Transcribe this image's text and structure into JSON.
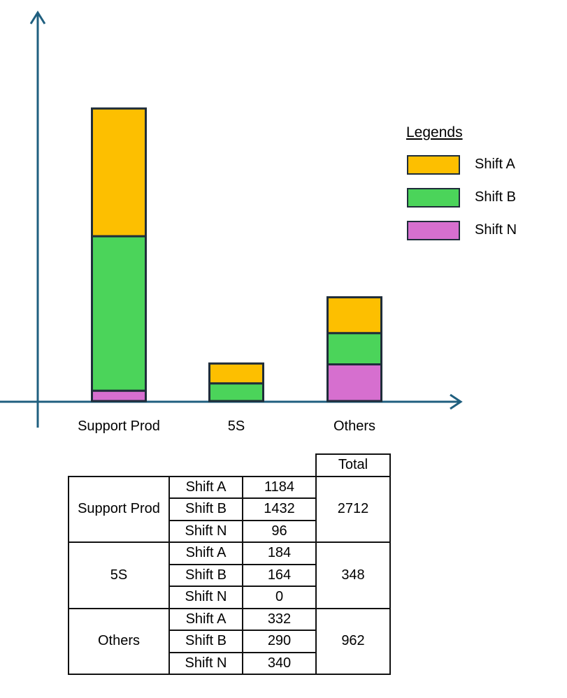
{
  "chart_data": {
    "type": "bar",
    "stacked": true,
    "categories": [
      "Support Prod",
      "5S",
      "Others"
    ],
    "series": [
      {
        "name": "Shift N",
        "color": "#d66fcf",
        "values": [
          96,
          0,
          340
        ]
      },
      {
        "name": "Shift B",
        "color": "#4bd45a",
        "values": [
          1432,
          164,
          290
        ]
      },
      {
        "name": "Shift A",
        "color": "#fdbf00",
        "values": [
          1184,
          184,
          332
        ]
      }
    ],
    "totals": [
      2712,
      348,
      962
    ],
    "grid": false,
    "axis_ticks_shown": false,
    "legend_placement": "right"
  },
  "legend": {
    "title": "Legends",
    "items": [
      {
        "label": "Shift A",
        "color": "#fdbf00"
      },
      {
        "label": "Shift B",
        "color": "#4bd45a"
      },
      {
        "label": "Shift N",
        "color": "#d66fcf"
      }
    ]
  },
  "table": {
    "total_header": "Total",
    "groups": [
      {
        "category": "Support Prod",
        "total": "2712",
        "rows": [
          {
            "shift": "Shift A",
            "value": "1184"
          },
          {
            "shift": "Shift B",
            "value": "1432"
          },
          {
            "shift": "Shift N",
            "value": "96"
          }
        ]
      },
      {
        "category": "5S",
        "total": "348",
        "rows": [
          {
            "shift": "Shift A",
            "value": "184"
          },
          {
            "shift": "Shift B",
            "value": "164"
          },
          {
            "shift": "Shift N",
            "value": "0"
          }
        ]
      },
      {
        "category": "Others",
        "total": "962",
        "rows": [
          {
            "shift": "Shift A",
            "value": "332"
          },
          {
            "shift": "Shift B",
            "value": "290"
          },
          {
            "shift": "Shift N",
            "value": "340"
          }
        ]
      }
    ]
  },
  "colors": {
    "axis": "#1f5f7f",
    "bar_outline": "#1f2d3a"
  }
}
